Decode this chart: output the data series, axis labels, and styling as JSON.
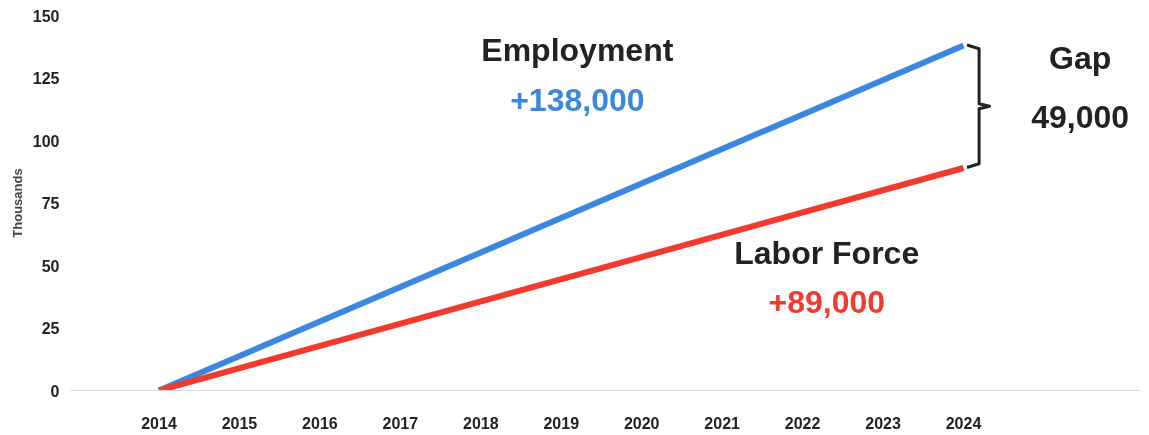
{
  "chart_data": {
    "type": "line",
    "ylabel": "Thousands",
    "x": [
      2014,
      2024
    ],
    "series": [
      {
        "name": "Employment",
        "color": "#3b87e0",
        "values": [
          0,
          138
        ]
      },
      {
        "name": "Labor Force",
        "color": "#f23b2e",
        "values": [
          0,
          89
        ]
      }
    ],
    "annotations": [
      "+138,000",
      "+89,000",
      "Gap",
      "49,000"
    ],
    "xlim": [
      2012.9,
      2026.2
    ],
    "xticks": [
      2014,
      2015,
      2016,
      2017,
      2018,
      2019,
      2020,
      2021,
      2022,
      2023,
      2024
    ],
    "ylim": [
      0,
      150
    ],
    "yticks": [
      0,
      25,
      50,
      75,
      100,
      125,
      150
    ],
    "grid": false,
    "legend": false,
    "marker": "none",
    "line_style": "solid"
  }
}
